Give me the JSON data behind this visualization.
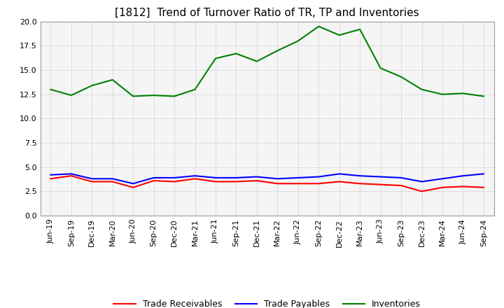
{
  "title": "[1812]  Trend of Turnover Ratio of TR, TP and Inventories",
  "xlabels": [
    "Jun-19",
    "Sep-19",
    "Dec-19",
    "Mar-20",
    "Jun-20",
    "Sep-20",
    "Dec-20",
    "Mar-21",
    "Jun-21",
    "Sep-21",
    "Dec-21",
    "Mar-22",
    "Jun-22",
    "Sep-22",
    "Dec-22",
    "Mar-23",
    "Jun-23",
    "Sep-23",
    "Dec-23",
    "Mar-24",
    "Jun-24",
    "Sep-24"
  ],
  "trade_receivables": [
    3.8,
    4.1,
    3.5,
    3.5,
    2.9,
    3.6,
    3.5,
    3.8,
    3.5,
    3.5,
    3.6,
    3.3,
    3.3,
    3.3,
    3.5,
    3.3,
    3.2,
    3.1,
    2.5,
    2.9,
    3.0,
    2.9
  ],
  "trade_payables": [
    4.2,
    4.3,
    3.8,
    3.8,
    3.3,
    3.9,
    3.9,
    4.1,
    3.9,
    3.9,
    4.0,
    3.8,
    3.9,
    4.0,
    4.3,
    4.1,
    4.0,
    3.9,
    3.5,
    3.8,
    4.1,
    4.3
  ],
  "inventories": [
    13.0,
    12.4,
    13.4,
    14.0,
    12.3,
    12.4,
    12.3,
    13.0,
    16.2,
    16.7,
    15.9,
    17.0,
    18.0,
    19.5,
    18.6,
    19.2,
    15.2,
    14.3,
    13.0,
    12.5,
    12.6,
    12.3
  ],
  "ylim": [
    0.0,
    20.0
  ],
  "yticks": [
    0.0,
    2.5,
    5.0,
    7.5,
    10.0,
    12.5,
    15.0,
    17.5,
    20.0
  ],
  "tr_color": "#ff0000",
  "tp_color": "#0000ff",
  "inv_color": "#008000",
  "background_color": "#ffffff",
  "plot_bg_color": "#f5f5f5",
  "grid_color": "#aaaaaa",
  "title_fontsize": 11,
  "tick_fontsize": 8,
  "legend_labels": [
    "Trade Receivables",
    "Trade Payables",
    "Inventories"
  ]
}
